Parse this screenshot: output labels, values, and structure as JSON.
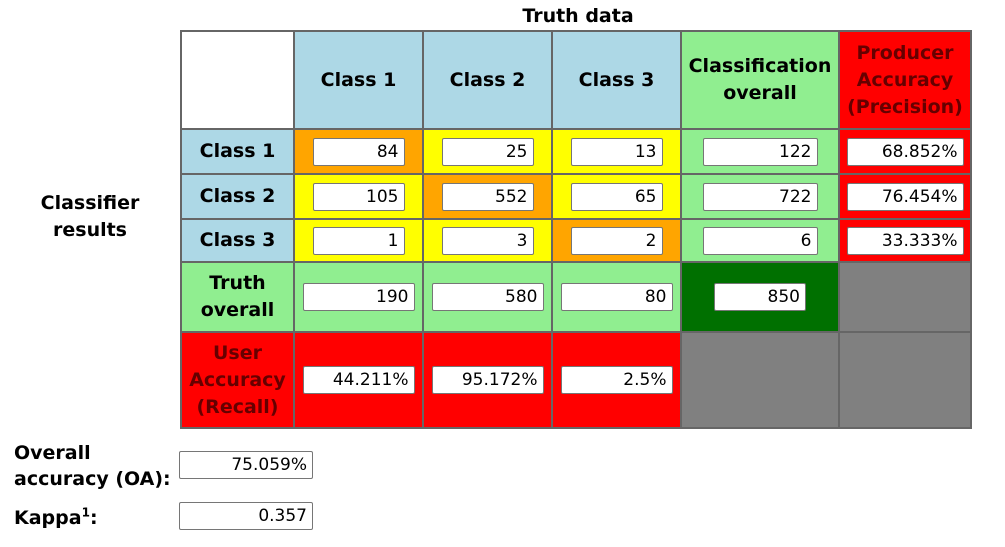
{
  "header": {
    "truth_data": "Truth data",
    "classifier_results": "Classifier results"
  },
  "columns": {
    "class1": "Class 1",
    "class2": "Class 2",
    "class3": "Class 3",
    "classification_overall": "Classification overall",
    "producer_accuracy": "Producer Accuracy (Precision)"
  },
  "rows": {
    "class1": "Class 1",
    "class2": "Class 2",
    "class3": "Class 3",
    "truth_overall": "Truth overall",
    "user_accuracy": "User Accuracy (Recall)"
  },
  "matrix": {
    "r1": {
      "c1": "84",
      "c2": "25",
      "c3": "13",
      "total": "122",
      "pa": "68.852%"
    },
    "r2": {
      "c1": "105",
      "c2": "552",
      "c3": "65",
      "total": "722",
      "pa": "76.454%"
    },
    "r3": {
      "c1": "1",
      "c2": "3",
      "c3": "2",
      "total": "6",
      "pa": "33.333%"
    },
    "truth": {
      "c1": "190",
      "c2": "580",
      "c3": "80",
      "total": "850"
    },
    "ua": {
      "c1": "44.211%",
      "c2": "95.172%",
      "c3": "2.5%"
    }
  },
  "summary": {
    "oa_label_line1": "Overall",
    "oa_label_line2": "accuracy (OA):",
    "oa_value": "75.059%",
    "kappa_label": "Kappa",
    "kappa_sup": "1",
    "kappa_colon": ":",
    "kappa_value": "0.357"
  },
  "colors": {
    "header_blue": "#add8e6",
    "total_green": "#90ee90",
    "accuracy_red": "#ff0000",
    "diagonal_orange": "#ffa500",
    "off_diagonal_yellow": "#ffff00",
    "grand_total_green": "#007000",
    "empty_grey": "#808080"
  }
}
